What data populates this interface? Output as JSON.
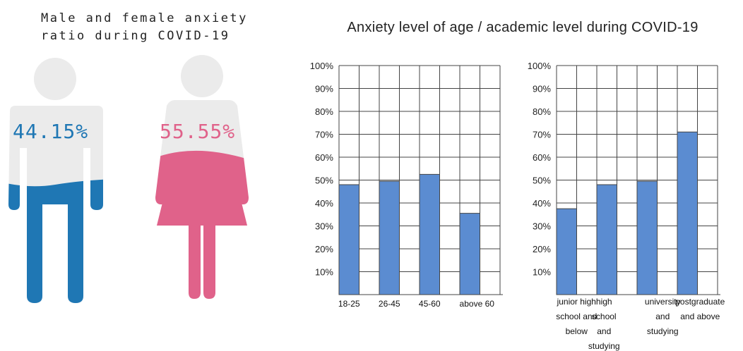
{
  "left_panel": {
    "title_line1": "Male and female anxiety",
    "title_line2": "ratio during COVID-19",
    "male": {
      "percent_text": "44.15%",
      "value": 44.15,
      "color": "#1f77b4"
    },
    "female": {
      "percent_text": "55.55%",
      "value": 55.55,
      "color": "#e0628a"
    },
    "silhouette_color": "#ebebeb"
  },
  "right_title": "Anxiety level of age / academic level during COVID-19",
  "chart_data": [
    {
      "type": "bar",
      "title": "",
      "categories": [
        "18-25",
        "26-45",
        "45-60",
        "above 60"
      ],
      "values": [
        48,
        49.5,
        52.5,
        35.5
      ],
      "ylim": [
        0,
        100
      ],
      "yticks": [
        "100%",
        "90%",
        "80%",
        "70%",
        "60%",
        "50%",
        "40%",
        "30%",
        "20%",
        "10%"
      ],
      "grid": true,
      "bar_color": "#5b8cd1"
    },
    {
      "type": "bar",
      "title": "",
      "categories": [
        "junior high school and below",
        "high school and studying",
        "university and studying",
        "postgraduate and above"
      ],
      "values": [
        37.5,
        48,
        49.5,
        71
      ],
      "ylim": [
        0,
        100
      ],
      "yticks": [
        "100%",
        "90%",
        "80%",
        "70%",
        "60%",
        "50%",
        "40%",
        "30%",
        "20%",
        "10%"
      ],
      "grid": true,
      "bar_color": "#5b8cd1"
    }
  ]
}
